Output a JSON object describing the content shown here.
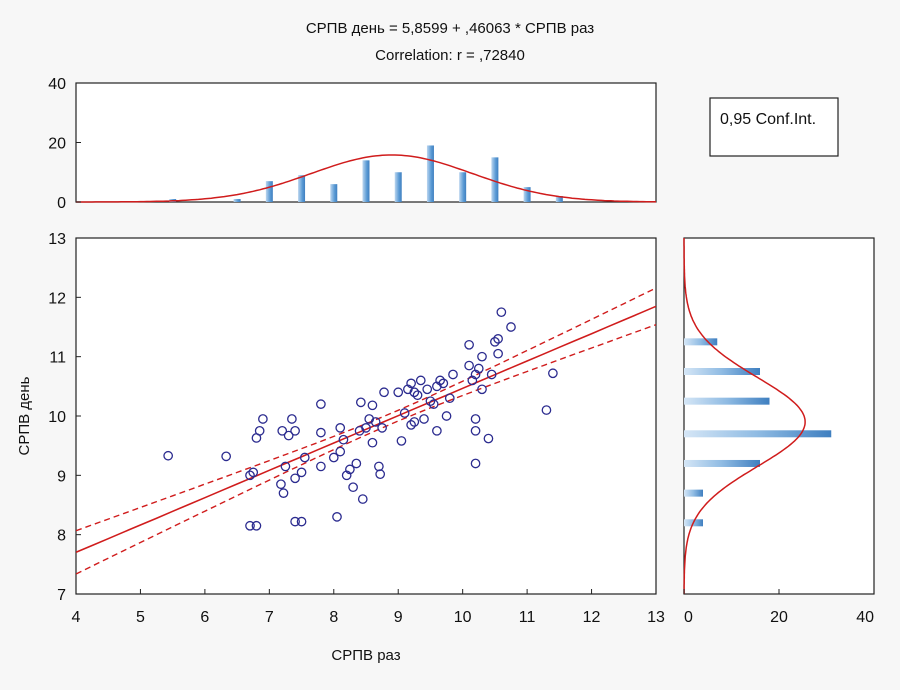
{
  "chart_data": {
    "type": "scatter",
    "title": "СРПВ день = 5,8599 + ,46063 * СРПВ раз",
    "subtitle": "Correlation: r = ,72840",
    "xlabel": "СРПВ раз",
    "ylabel": "СРПВ день",
    "xlim": [
      4,
      13
    ],
    "ylim": [
      7,
      13
    ],
    "x_ticks": [
      "4",
      "5",
      "6",
      "7",
      "8",
      "9",
      "10",
      "11",
      "12",
      "13"
    ],
    "y_ticks": [
      "7",
      "8",
      "9",
      "10",
      "11",
      "12",
      "13"
    ],
    "grid": false,
    "legend": "0,95 Conf.Int.",
    "regression": {
      "intercept": 5.8599,
      "slope": 0.46063
    },
    "colors": {
      "points": "#2b2b8f",
      "line": "#d01c1c",
      "bars": "#5b9bd5"
    },
    "points": [
      [
        5.43,
        9.33
      ],
      [
        6.33,
        9.32
      ],
      [
        6.7,
        8.15
      ],
      [
        6.7,
        9.0
      ],
      [
        6.75,
        9.05
      ],
      [
        6.8,
        8.15
      ],
      [
        6.8,
        9.63
      ],
      [
        6.85,
        9.75
      ],
      [
        6.9,
        9.95
      ],
      [
        7.18,
        8.85
      ],
      [
        7.2,
        9.75
      ],
      [
        7.22,
        8.7
      ],
      [
        7.25,
        9.15
      ],
      [
        7.3,
        9.67
      ],
      [
        7.35,
        9.95
      ],
      [
        7.4,
        8.95
      ],
      [
        7.4,
        9.75
      ],
      [
        7.4,
        8.22
      ],
      [
        7.5,
        8.22
      ],
      [
        7.5,
        9.05
      ],
      [
        7.55,
        9.3
      ],
      [
        7.8,
        9.15
      ],
      [
        7.8,
        9.72
      ],
      [
        7.8,
        10.2
      ],
      [
        8.0,
        9.3
      ],
      [
        8.05,
        8.3
      ],
      [
        8.1,
        9.4
      ],
      [
        8.1,
        9.8
      ],
      [
        8.15,
        9.6
      ],
      [
        8.2,
        9.0
      ],
      [
        8.25,
        9.1
      ],
      [
        8.3,
        8.8
      ],
      [
        8.35,
        9.2
      ],
      [
        8.4,
        9.75
      ],
      [
        8.42,
        10.23
      ],
      [
        8.45,
        8.6
      ],
      [
        8.5,
        9.8
      ],
      [
        8.55,
        9.95
      ],
      [
        8.6,
        9.55
      ],
      [
        8.6,
        10.18
      ],
      [
        8.65,
        9.9
      ],
      [
        8.7,
        9.15
      ],
      [
        8.72,
        9.02
      ],
      [
        8.75,
        9.8
      ],
      [
        8.78,
        10.4
      ],
      [
        9.0,
        10.4
      ],
      [
        9.05,
        9.58
      ],
      [
        9.1,
        10.05
      ],
      [
        9.15,
        10.45
      ],
      [
        9.2,
        9.85
      ],
      [
        9.2,
        10.55
      ],
      [
        9.25,
        9.9
      ],
      [
        9.25,
        10.4
      ],
      [
        9.3,
        10.35
      ],
      [
        9.35,
        10.6
      ],
      [
        9.4,
        9.95
      ],
      [
        9.45,
        10.45
      ],
      [
        9.5,
        10.25
      ],
      [
        9.55,
        10.2
      ],
      [
        9.6,
        9.75
      ],
      [
        9.6,
        10.5
      ],
      [
        9.65,
        10.6
      ],
      [
        9.7,
        10.55
      ],
      [
        9.75,
        10.0
      ],
      [
        9.8,
        10.3
      ],
      [
        9.85,
        10.7
      ],
      [
        10.1,
        10.85
      ],
      [
        10.1,
        11.2
      ],
      [
        10.15,
        10.6
      ],
      [
        10.2,
        9.95
      ],
      [
        10.2,
        9.75
      ],
      [
        10.2,
        9.2
      ],
      [
        10.2,
        10.7
      ],
      [
        10.25,
        10.8
      ],
      [
        10.3,
        11.0
      ],
      [
        10.3,
        10.45
      ],
      [
        10.4,
        9.62
      ],
      [
        10.45,
        10.7
      ],
      [
        10.5,
        11.25
      ],
      [
        10.55,
        11.05
      ],
      [
        10.55,
        11.3
      ],
      [
        10.6,
        11.75
      ],
      [
        10.75,
        11.5
      ],
      [
        11.3,
        10.1
      ],
      [
        11.4,
        10.72
      ]
    ],
    "x_histogram": {
      "ylim": [
        0,
        40
      ],
      "y_ticks": [
        "0",
        "20",
        "40"
      ],
      "bins": [
        {
          "x": 5.5,
          "count": 1
        },
        {
          "x": 6.0,
          "count": 0
        },
        {
          "x": 6.5,
          "count": 1
        },
        {
          "x": 7.0,
          "count": 7
        },
        {
          "x": 7.5,
          "count": 9
        },
        {
          "x": 8.0,
          "count": 6
        },
        {
          "x": 8.5,
          "count": 14
        },
        {
          "x": 9.0,
          "count": 10
        },
        {
          "x": 9.5,
          "count": 19
        },
        {
          "x": 10.0,
          "count": 10
        },
        {
          "x": 10.5,
          "count": 15
        },
        {
          "x": 11.0,
          "count": 5
        },
        {
          "x": 11.5,
          "count": 2
        },
        {
          "x": 12.0,
          "count": 0
        }
      ],
      "normal_curve": {
        "mean": 8.9,
        "sd": 1.25,
        "peak": 15.8
      }
    },
    "y_histogram": {
      "xlim": [
        0,
        40
      ],
      "x_ticks": [
        "0",
        "20",
        "40"
      ],
      "bins": [
        {
          "y": 8.2,
          "count": 4
        },
        {
          "y": 8.7,
          "count": 4
        },
        {
          "y": 9.2,
          "count": 16
        },
        {
          "y": 9.7,
          "count": 31
        },
        {
          "y": 10.25,
          "count": 18
        },
        {
          "y": 10.75,
          "count": 16
        },
        {
          "y": 11.25,
          "count": 7
        }
      ],
      "normal_curve": {
        "mean": 9.9,
        "sd": 0.75,
        "peak": 25.5
      }
    }
  }
}
